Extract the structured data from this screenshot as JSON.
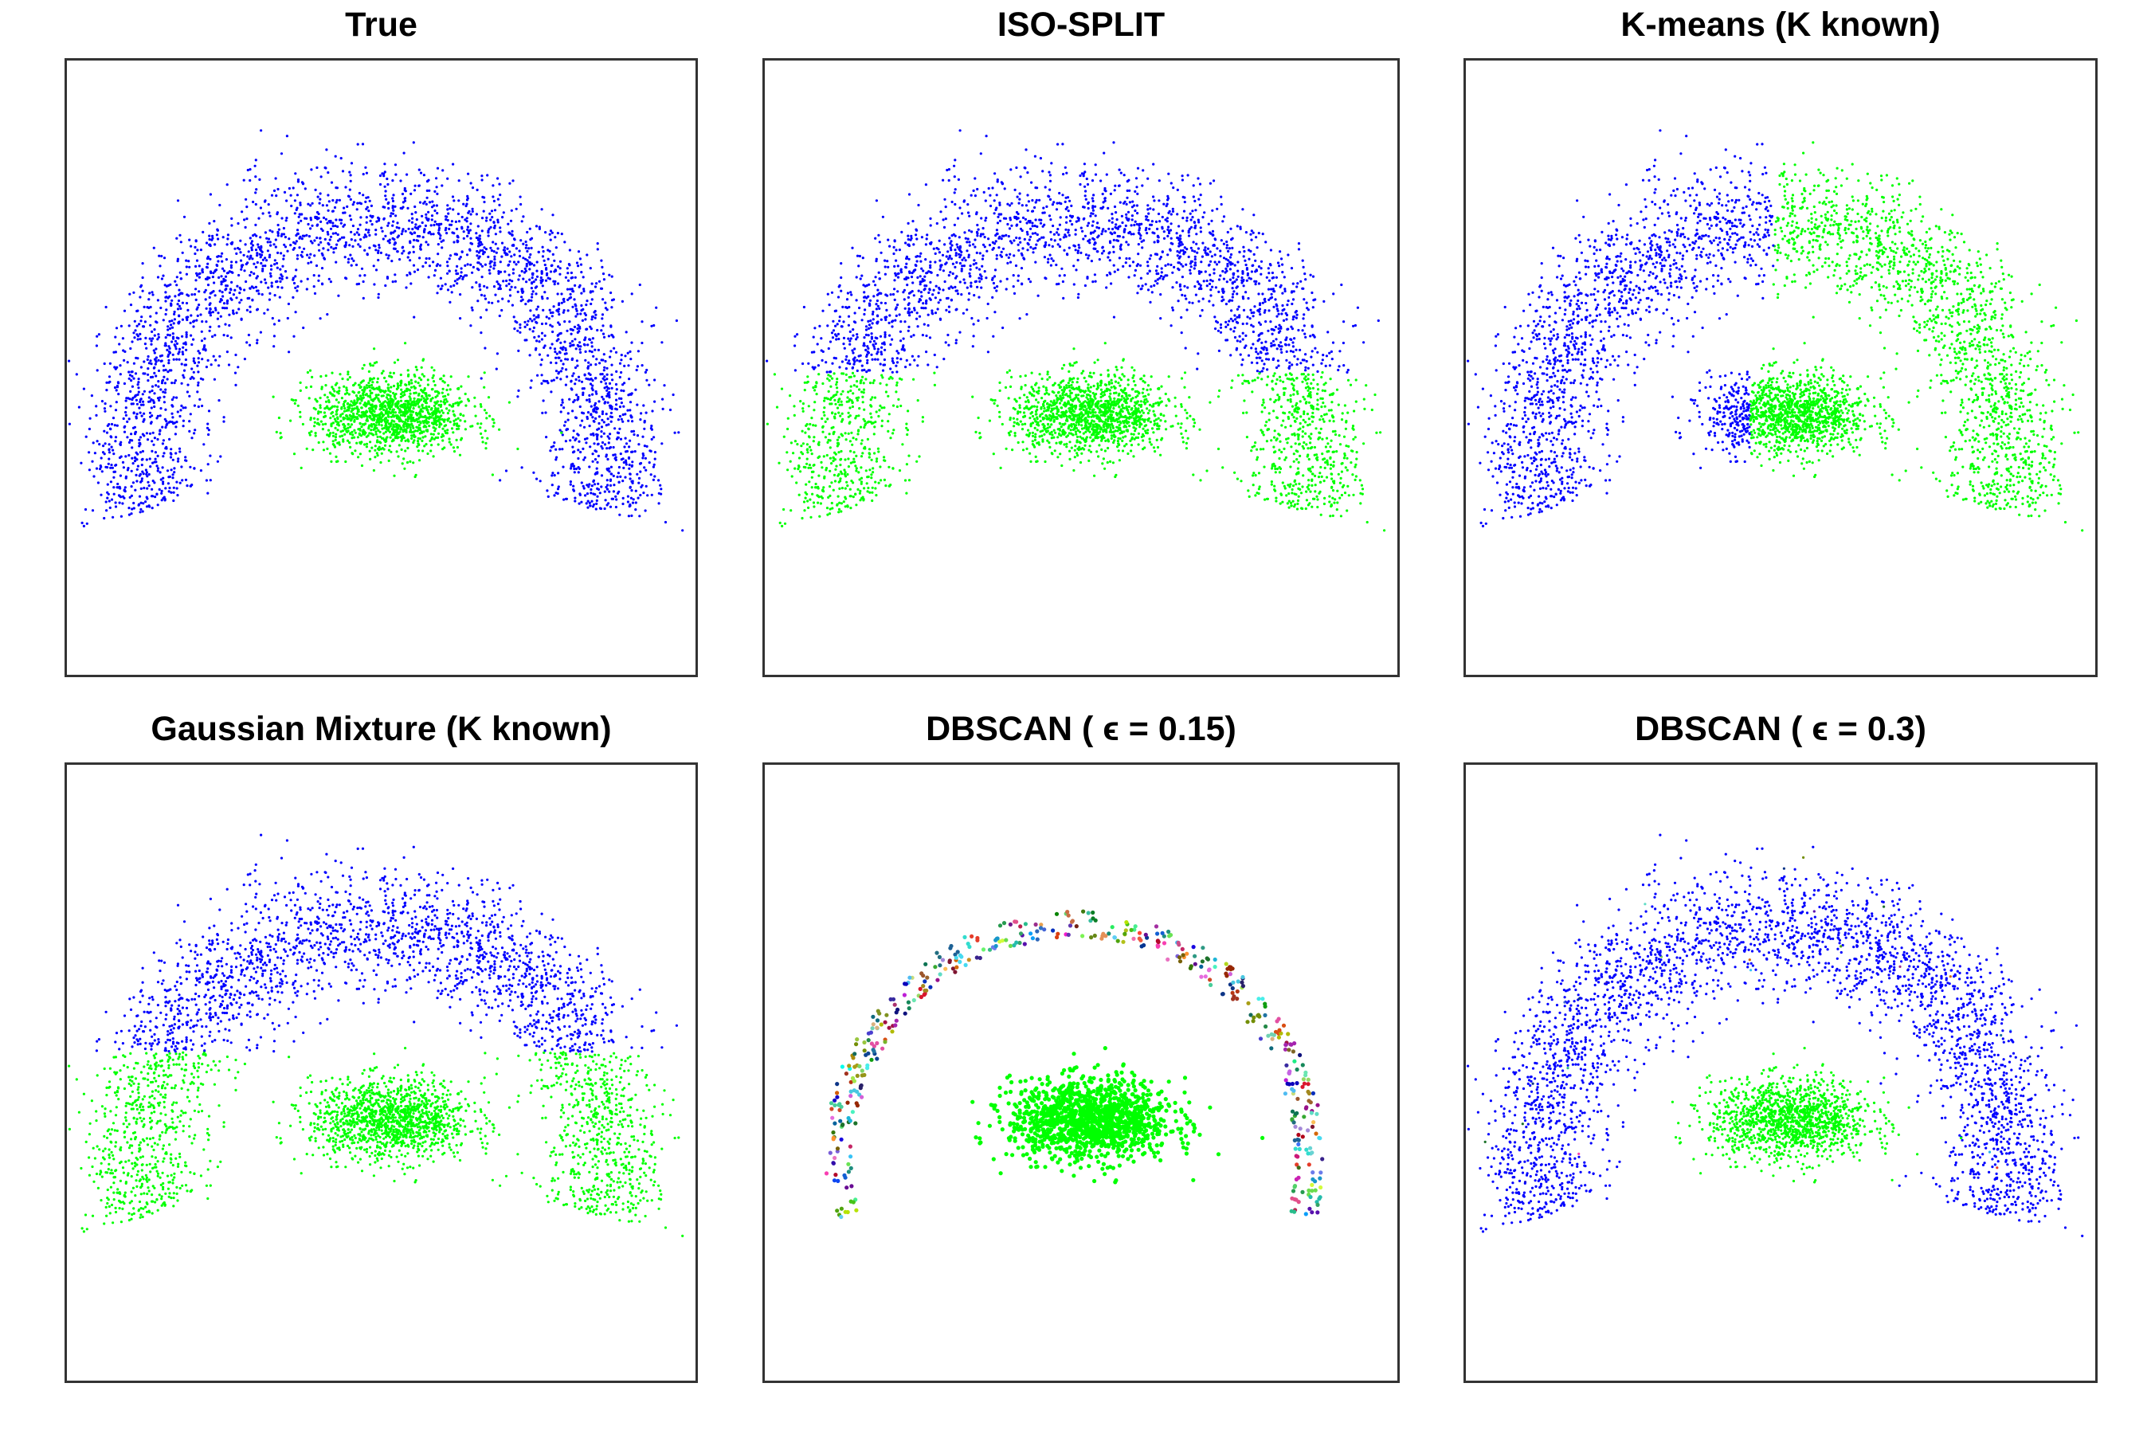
{
  "chart_data": [
    {
      "type": "scatter",
      "title": "True",
      "coloring": "true",
      "xlim": [
        -1.32,
        1.38
      ],
      "ylim": [
        -0.95,
        1.69
      ]
    },
    {
      "type": "scatter",
      "title": "ISO-SPLIT",
      "coloring": "arc-top-blue-above-0.35",
      "xlim": [
        -1.32,
        1.38
      ],
      "ylim": [
        -0.95,
        1.69
      ]
    },
    {
      "type": "scatter",
      "title": "K-means (K known)",
      "coloring": "left-half-blue",
      "xlim": [
        -1.32,
        1.38
      ],
      "ylim": [
        -0.95,
        1.69
      ]
    },
    {
      "type": "scatter",
      "title": "Gaussian Mixture (K known)",
      "coloring": "arc-top-blue-above-0.46",
      "xlim": [
        -1.32,
        1.38
      ],
      "ylim": [
        -0.95,
        1.69
      ]
    },
    {
      "type": "scatter",
      "title": "DBSCAN ( ϵ = 0.15)",
      "coloring": "many-small-clusters",
      "xlim": [
        -1.32,
        1.38
      ],
      "ylim": [
        -0.95,
        1.69
      ]
    },
    {
      "type": "scatter",
      "title": "DBSCAN ( ϵ = 0.3)",
      "coloring": "arc-blue-blob-green-few-outliers",
      "xlim": [
        -1.32,
        1.38
      ],
      "ylim": [
        -0.95,
        1.69
      ]
    }
  ],
  "clusters": [
    {
      "shape": "arc",
      "center": [
        0,
        0
      ],
      "radius": 1.0,
      "spread": 0.13,
      "angle_range_deg": [
        -14,
        194
      ],
      "n": 3000
    },
    {
      "shape": "blob",
      "center": [
        0.07,
        0.17
      ],
      "sd": [
        0.17,
        0.085
      ],
      "n": 1300
    }
  ],
  "colors": {
    "blue": "#0000ff",
    "green": "#00ff00"
  },
  "grid": false,
  "axes_ticks": false
}
